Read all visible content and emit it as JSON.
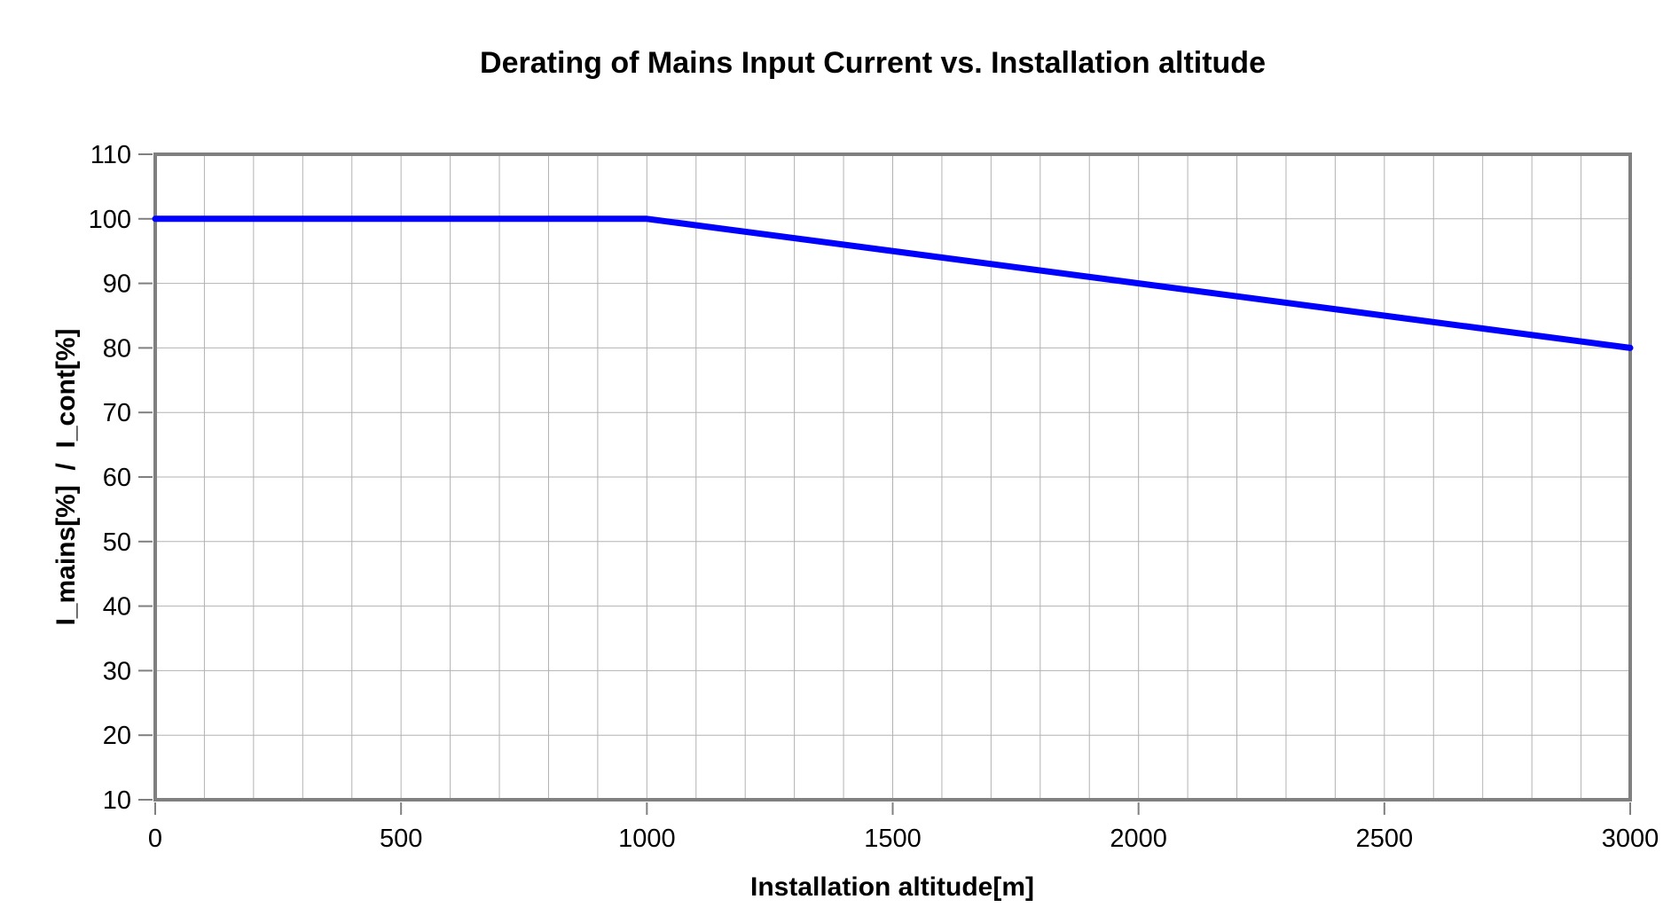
{
  "chart_data": {
    "type": "line",
    "title": "Derating of Mains Input Current vs. Installation altitude",
    "xlabel": "Installation altitude[m]",
    "ylabel": "I_mains[%]  /  I_cont[%]",
    "xlim": [
      0,
      3000
    ],
    "ylim": [
      10,
      110
    ],
    "x_ticks": [
      0,
      500,
      1000,
      1500,
      2000,
      2500,
      3000
    ],
    "y_ticks": [
      10,
      20,
      30,
      40,
      50,
      60,
      70,
      80,
      90,
      100,
      110
    ],
    "x_grid_step": 100,
    "y_grid_step": 10,
    "grid": true,
    "legend_position": "none",
    "series": [
      {
        "points": [
          [
            0,
            100
          ],
          [
            1000,
            100
          ],
          [
            3000,
            80
          ]
        ]
      }
    ],
    "colors": {
      "line": "#0000ff",
      "grid": "#b2b2b2",
      "border": "#808080",
      "text": "#000000",
      "background": "#ffffff"
    }
  }
}
